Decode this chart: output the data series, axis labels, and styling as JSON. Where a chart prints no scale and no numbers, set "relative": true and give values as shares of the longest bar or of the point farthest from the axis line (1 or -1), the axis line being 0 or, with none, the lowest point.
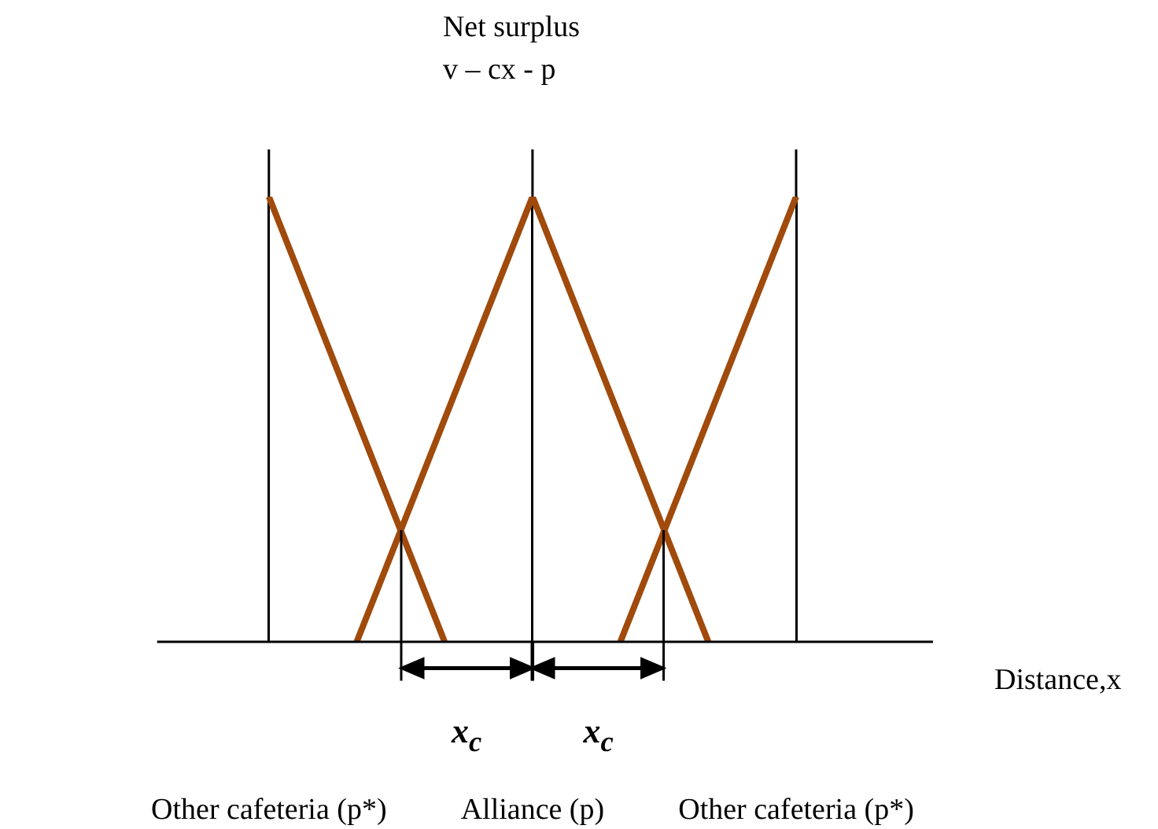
{
  "chart_data": {
    "type": "line",
    "relative": true,
    "marker": "none",
    "grid": "x",
    "ylabel": "Net surplus\nv – cx - p",
    "xlabel": "Distance,x",
    "categories": [
      "Other cafeteria (p*)",
      null,
      null,
      "Alliance (p)",
      null,
      null,
      "Other cafeteria (p*)"
    ],
    "series": [
      {
        "color": "#a04a0c",
        "values": [
          1,
          0.5,
          0,
          null,
          null,
          null,
          null
        ]
      },
      {
        "color": "#a04a0c",
        "values": [
          null,
          0,
          0.5,
          1,
          null,
          null,
          null
        ]
      },
      {
        "color": "#a04a0c",
        "values": [
          null,
          null,
          null,
          1,
          0.5,
          0,
          null
        ]
      },
      {
        "color": "#a04a0c",
        "values": [
          null,
          null,
          null,
          null,
          0,
          0.5,
          1
        ]
      }
    ],
    "annotations": [
      "x$_{c}$",
      "x$_{c}$"
    ]
  }
}
